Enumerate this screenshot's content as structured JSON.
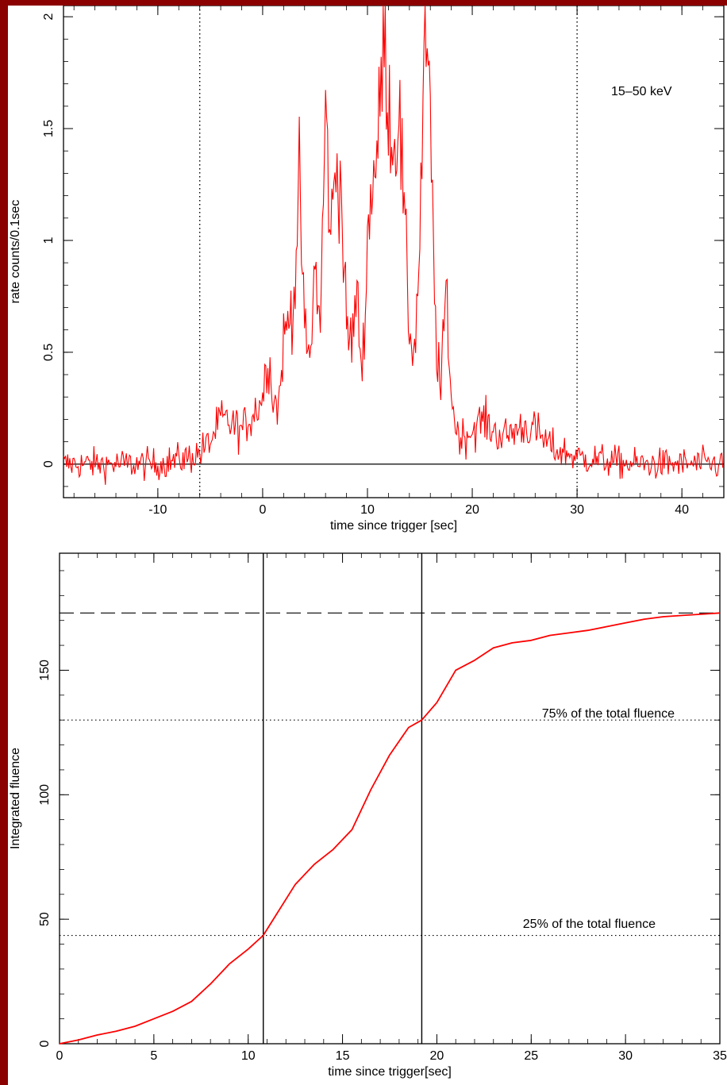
{
  "colors": {
    "frame": "#8b0000",
    "data": "#ff0000",
    "axis": "#000000"
  },
  "chart_data": [
    {
      "type": "line",
      "xlabel": "time since trigger [sec]",
      "ylabel": "rate counts/0.1sec",
      "xlim": [
        -19,
        44
      ],
      "ylim": [
        -0.15,
        2.05
      ],
      "xticks": [
        -10,
        0,
        10,
        20,
        30,
        40
      ],
      "yticks": [
        0,
        0.5,
        1,
        1.5,
        2
      ],
      "ytick_labels": [
        "0",
        "0.5",
        "1",
        "1.5",
        "2"
      ],
      "annotation": "15–50 keV",
      "hlines": [
        {
          "y": 0,
          "style": "solid"
        }
      ],
      "vlines": [
        {
          "x": -6,
          "style": "dotted"
        },
        {
          "x": 30,
          "style": "dotted"
        }
      ],
      "series": [
        {
          "x": [
            -19,
            -14,
            -10,
            -7,
            -6,
            -5,
            -4,
            -3,
            -2,
            -1,
            0,
            0.5,
            1,
            1.5,
            2,
            2.5,
            3,
            3.5,
            4,
            4.5,
            5,
            5.5,
            6,
            6.5,
            7,
            7.5,
            8,
            8.5,
            9,
            9.5,
            10,
            10.5,
            11,
            11.5,
            12,
            12.5,
            13,
            13.5,
            14,
            14.5,
            15,
            15.5,
            16,
            16.5,
            17,
            17.5,
            18,
            18.5,
            19,
            20,
            21,
            22,
            23,
            24,
            25,
            26,
            27,
            28,
            29,
            30,
            32,
            35,
            38,
            41,
            44
          ],
          "y": [
            0.0,
            0.0,
            0.0,
            0.03,
            0.05,
            0.1,
            0.2,
            0.18,
            0.15,
            0.22,
            0.3,
            0.5,
            0.3,
            0.25,
            0.55,
            0.65,
            0.75,
            1.25,
            0.6,
            0.45,
            0.9,
            0.6,
            1.6,
            1.0,
            1.38,
            1.2,
            0.6,
            0.55,
            0.75,
            0.4,
            1.0,
            1.3,
            1.4,
            1.9,
            1.65,
            1.4,
            1.6,
            1.1,
            0.6,
            0.5,
            1.0,
            2.0,
            1.5,
            0.6,
            0.3,
            0.8,
            0.3,
            0.15,
            0.12,
            0.15,
            0.2,
            0.15,
            0.12,
            0.15,
            0.17,
            0.15,
            0.1,
            0.06,
            0.05,
            0.03,
            0.02,
            0.0,
            0.0,
            0.0,
            0.0
          ]
        }
      ]
    },
    {
      "type": "line",
      "xlabel": "time since trigger[sec]",
      "ylabel": "Integrated fluence",
      "xlim": [
        0,
        35
      ],
      "ylim": [
        0,
        197
      ],
      "xticks": [
        0,
        5,
        10,
        15,
        20,
        25,
        30,
        35
      ],
      "yticks": [
        0,
        50,
        100,
        150
      ],
      "hlines": [
        {
          "y": 173,
          "style": "dashed"
        },
        {
          "y": 130,
          "style": "dotted"
        },
        {
          "y": 43.5,
          "style": "dotted"
        }
      ],
      "vlines": [
        {
          "x": 10.8,
          "style": "solid"
        },
        {
          "x": 19.2,
          "style": "solid"
        }
      ],
      "annotations": [
        "75% of the total fluence",
        "25% of the total fluence"
      ],
      "series": [
        {
          "x": [
            0,
            1,
            2,
            3,
            4,
            5,
            6,
            7,
            8,
            9,
            10,
            10.8,
            11.5,
            12.5,
            13.5,
            14.5,
            15.5,
            16.5,
            17.5,
            18.5,
            19.2,
            20,
            21,
            22,
            23,
            24,
            25,
            26,
            27,
            28,
            29,
            30,
            31,
            32,
            33,
            34,
            35
          ],
          "y": [
            0,
            1.5,
            3.5,
            5,
            7,
            10,
            13,
            17,
            24,
            32,
            38,
            43.5,
            52,
            64,
            72,
            78,
            86,
            102,
            116,
            127,
            130,
            137,
            150,
            154,
            159,
            161,
            162,
            164,
            165,
            166,
            167.5,
            169,
            170.5,
            171.5,
            172,
            172.5,
            173
          ]
        }
      ]
    }
  ]
}
